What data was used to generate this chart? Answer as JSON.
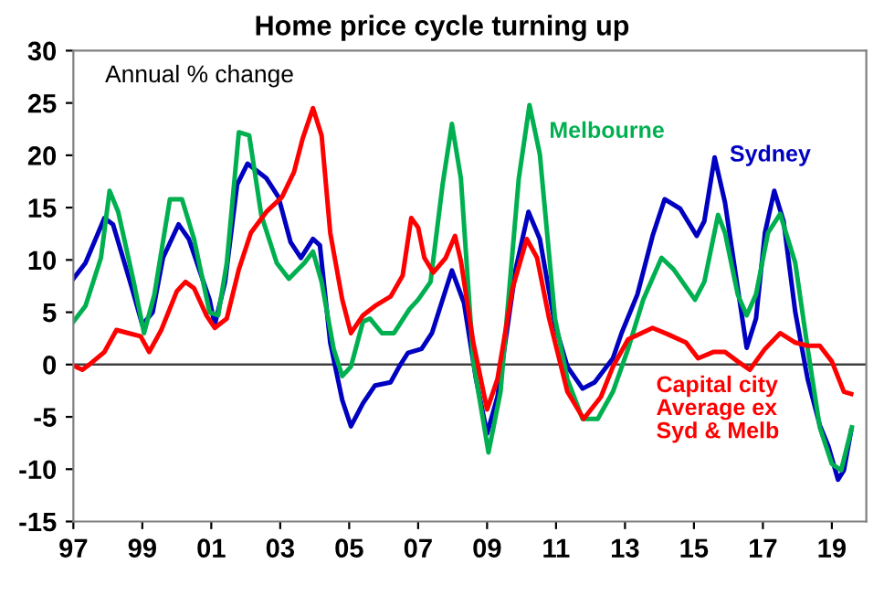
{
  "chart_data": {
    "type": "line",
    "title": "Home price cycle turning up",
    "annotations": [
      "Annual % change"
    ],
    "xlim": [
      1997,
      2020
    ],
    "xticks": [
      {
        "value": 1997,
        "label": "97"
      },
      {
        "value": 1999,
        "label": "99"
      },
      {
        "value": 2001,
        "label": "01"
      },
      {
        "value": 2003,
        "label": "03"
      },
      {
        "value": 2005,
        "label": "05"
      },
      {
        "value": 2007,
        "label": "07"
      },
      {
        "value": 2009,
        "label": "09"
      },
      {
        "value": 2011,
        "label": "11"
      },
      {
        "value": 2013,
        "label": "13"
      },
      {
        "value": 2015,
        "label": "15"
      },
      {
        "value": 2017,
        "label": "17"
      },
      {
        "value": 2019,
        "label": "19"
      }
    ],
    "ylim": [
      -15,
      30
    ],
    "yticks": [
      -15,
      -10,
      -5,
      0,
      5,
      10,
      15,
      20,
      25,
      30
    ],
    "grid": false,
    "legend": false,
    "marker": "none",
    "line_style": "solid",
    "ref_lines": [
      {
        "axis": "y",
        "value": 0,
        "color": "#404040"
      }
    ],
    "series": [
      {
        "name": "Sydney",
        "color": "#0000c0",
        "x": [
          1997.0,
          1997.35,
          1997.9,
          1998.15,
          1998.7,
          1999.0,
          1999.3,
          1999.6,
          2000.05,
          2000.35,
          2000.95,
          2001.1,
          2001.4,
          2001.75,
          2002.05,
          2002.6,
          2002.95,
          2003.3,
          2003.6,
          2003.95,
          2004.15,
          2004.45,
          2004.8,
          2005.05,
          2005.4,
          2005.75,
          2006.2,
          2006.45,
          2006.7,
          2007.1,
          2007.4,
          2007.98,
          2008.33,
          2008.68,
          2009.0,
          2009.3,
          2009.83,
          2010.2,
          2010.53,
          2010.97,
          2011.33,
          2011.77,
          2012.12,
          2012.65,
          2012.9,
          2013.36,
          2013.8,
          2014.15,
          2014.6,
          2015.08,
          2015.3,
          2015.6,
          2015.9,
          2016.27,
          2016.53,
          2016.8,
          2017.06,
          2017.33,
          2017.6,
          2017.94,
          2018.3,
          2018.65,
          2018.9,
          2019.18,
          2019.35,
          2019.56
        ],
        "values": [
          8.2,
          9.7,
          14,
          13.4,
          7.3,
          3.8,
          5,
          10.2,
          13.4,
          12,
          6.2,
          3.8,
          7.9,
          17.2,
          19.2,
          17.8,
          16,
          11.7,
          10.2,
          12,
          11.4,
          2.1,
          -3.4,
          -5.9,
          -3.7,
          -2,
          -1.7,
          -0.2,
          1.1,
          1.5,
          3,
          9,
          5.9,
          -1.4,
          -6.6,
          -3.1,
          9.1,
          14.6,
          12,
          3.8,
          -0.2,
          -2.3,
          -1.7,
          0.6,
          3,
          6.7,
          12.3,
          15.8,
          14.9,
          12.3,
          13.7,
          19.8,
          15.5,
          7.3,
          1.6,
          4.4,
          12.6,
          16.6,
          13.7,
          5,
          -1.4,
          -5.8,
          -7.8,
          -11,
          -10.1,
          -6.3
        ]
      },
      {
        "name": "Melbourne",
        "color": "#00b050",
        "x": [
          1997.0,
          1997.35,
          1997.8,
          1998.05,
          1998.3,
          1998.75,
          1999.05,
          1999.35,
          1999.8,
          2000.15,
          2000.5,
          2000.95,
          2001.2,
          2001.45,
          2001.8,
          2002.1,
          2002.45,
          2002.9,
          2003.25,
          2003.7,
          2003.95,
          2004.2,
          2004.55,
          2004.8,
          2005.05,
          2005.4,
          2005.6,
          2005.95,
          2006.3,
          2006.75,
          2007.0,
          2007.36,
          2007.71,
          2007.98,
          2008.24,
          2008.6,
          2009.04,
          2009.39,
          2009.92,
          2010.23,
          2010.53,
          2010.97,
          2011.33,
          2011.77,
          2012.21,
          2012.65,
          2013.09,
          2013.53,
          2014.06,
          2014.41,
          2015.03,
          2015.3,
          2015.7,
          2015.9,
          2016.27,
          2016.53,
          2016.8,
          2017.15,
          2017.5,
          2017.94,
          2018.3,
          2018.65,
          2019.0,
          2019.27,
          2019.58
        ],
        "values": [
          4.1,
          5.6,
          10.2,
          16.6,
          14.6,
          7.9,
          3,
          6.7,
          15.8,
          15.8,
          12,
          5,
          4.7,
          9.7,
          22.2,
          21.9,
          14.3,
          9.7,
          8.2,
          9.7,
          10.8,
          7.9,
          1.5,
          -1.1,
          -0.2,
          4.1,
          4.4,
          3,
          3,
          5.3,
          6.2,
          7.9,
          17.2,
          23,
          17.8,
          0.3,
          -8.4,
          -2.6,
          17.8,
          24.8,
          20.1,
          4.4,
          -1.4,
          -5.2,
          -5.2,
          -2.6,
          1.5,
          6.2,
          10.2,
          9.1,
          6.2,
          7.9,
          14.3,
          12.6,
          6.7,
          4.7,
          6.7,
          12.6,
          14.4,
          9.7,
          1.5,
          -6,
          -9.5,
          -10.1,
          -6
        ]
      },
      {
        "name": "Capital city\nAverage ex\nSyd & Melb",
        "color": "#ff0000",
        "x": [
          1997.0,
          1997.26,
          1997.5,
          1997.9,
          1998.25,
          1998.6,
          1998.95,
          1999.2,
          1999.55,
          2000.0,
          2000.25,
          2000.5,
          2000.86,
          2001.1,
          2001.45,
          2001.8,
          2002.15,
          2002.6,
          2003.05,
          2003.4,
          2003.65,
          2003.95,
          2004.2,
          2004.45,
          2004.8,
          2005.05,
          2005.4,
          2005.75,
          2006.2,
          2006.55,
          2006.8,
          2007.0,
          2007.18,
          2007.44,
          2007.8,
          2008.07,
          2008.24,
          2008.6,
          2009.0,
          2009.3,
          2009.74,
          2010.15,
          2010.45,
          2010.8,
          2011.33,
          2011.8,
          2012.3,
          2012.65,
          2013.09,
          2013.8,
          2014.24,
          2014.77,
          2015.12,
          2015.56,
          2015.9,
          2016.27,
          2016.62,
          2017.06,
          2017.5,
          2017.94,
          2018.3,
          2018.65,
          2019.0,
          2019.35,
          2019.56
        ],
        "values": [
          -0.1,
          -0.5,
          0.1,
          1.2,
          3.3,
          3,
          2.7,
          1.2,
          3.3,
          7,
          7.9,
          7.3,
          4.7,
          3.5,
          4.4,
          9.1,
          12.6,
          14.6,
          16,
          18.4,
          21.6,
          24.5,
          21.9,
          12.6,
          6.2,
          3,
          4.7,
          5.6,
          6.5,
          8.5,
          14,
          13.1,
          10.2,
          8.8,
          10.2,
          12.3,
          9.9,
          2.1,
          -4.3,
          -1.4,
          7.3,
          12,
          10.2,
          4.4,
          -2.6,
          -5.2,
          -3.1,
          -0.2,
          2.4,
          3.5,
          2.9,
          2.1,
          0.6,
          1.2,
          1.2,
          0.3,
          -0.5,
          1.5,
          3,
          2.1,
          1.8,
          1.8,
          0.3,
          -2.6,
          -2.8
        ]
      }
    ]
  }
}
